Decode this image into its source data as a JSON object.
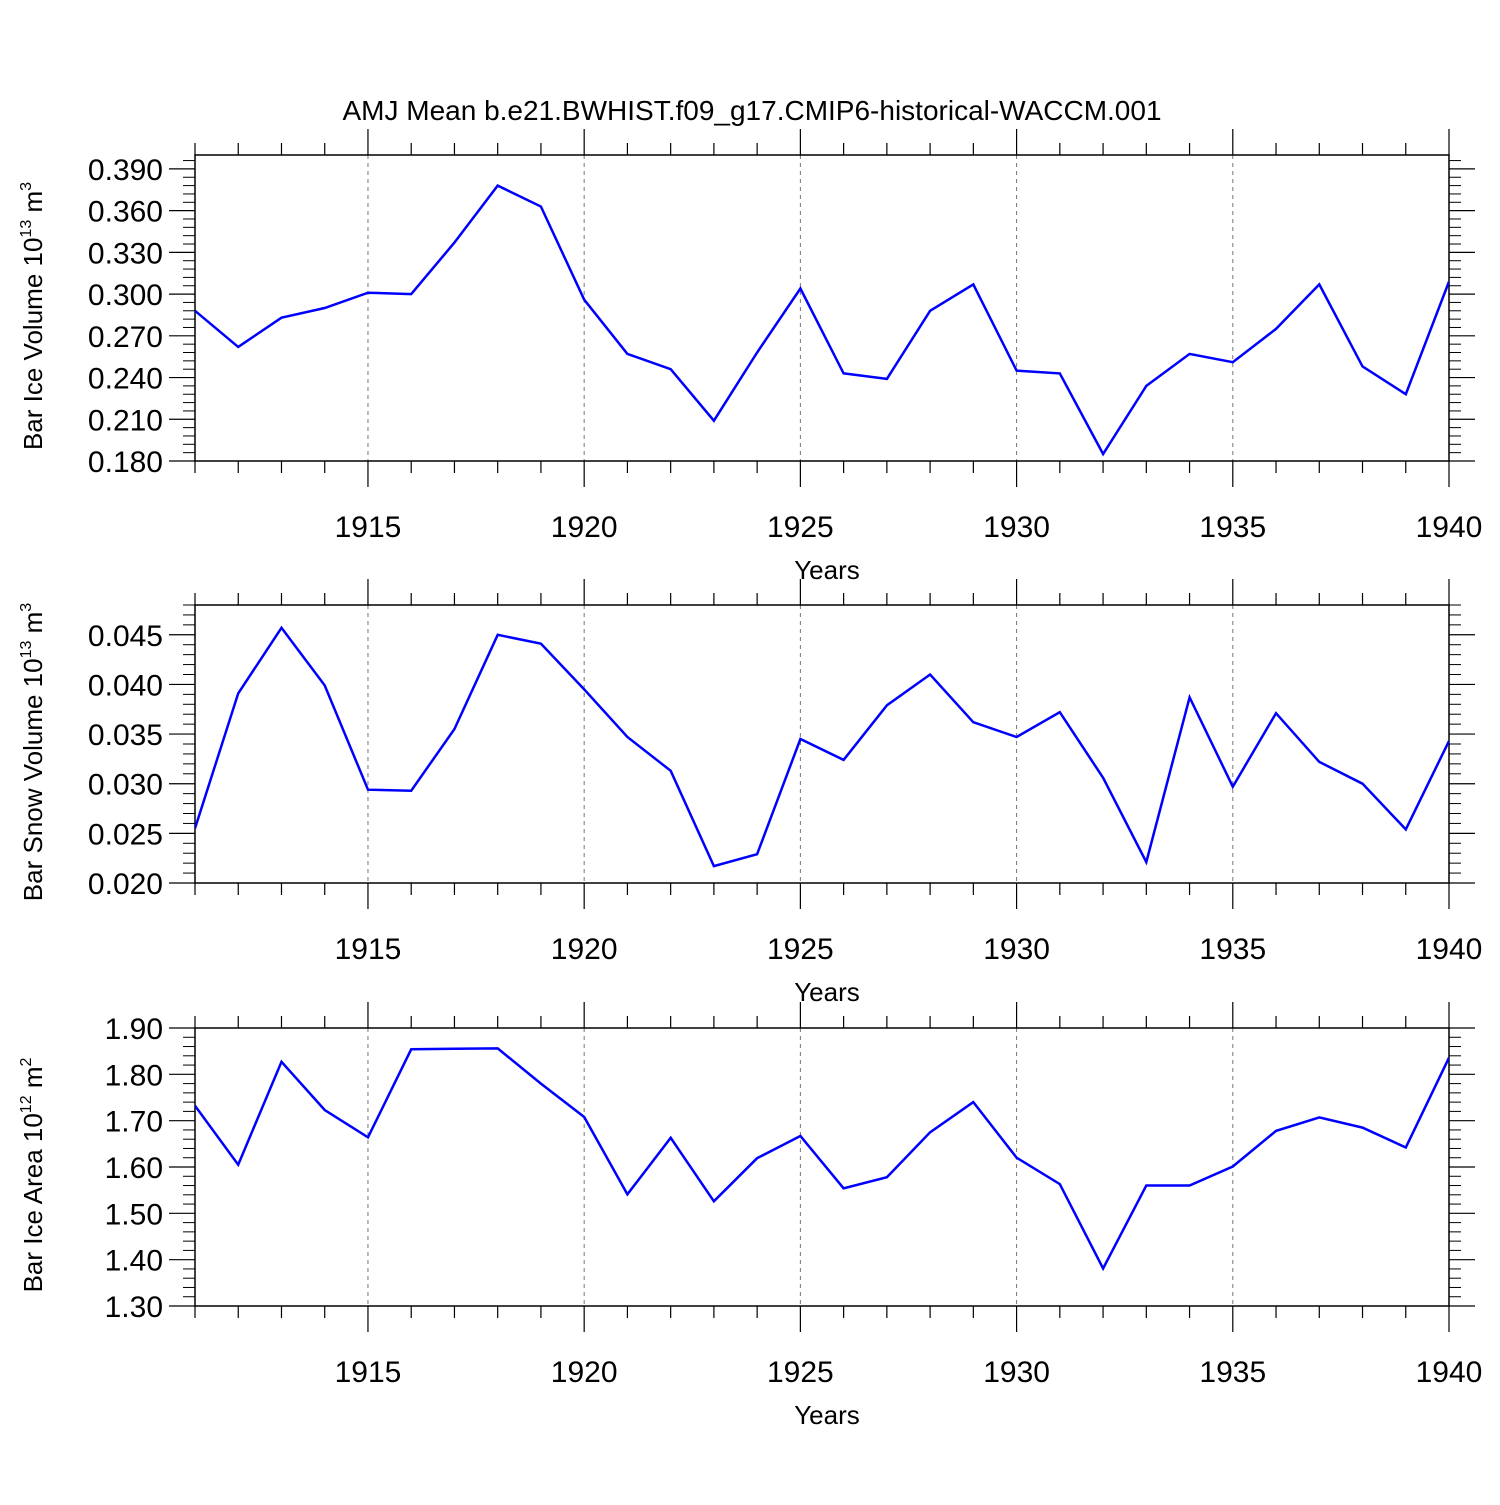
{
  "title": "AMJ Mean b.e21.BWHIST.f09_g17.CMIP6-historical-WACCM.001",
  "chart_data": [
    {
      "type": "line",
      "ylabel_main": "Bar Ice Volume 10",
      "ylabel_exp": "13",
      "ylabel_unit": " m",
      "ylabel_unit_exp": "3",
      "xlabel": "Years",
      "xlim": [
        1911,
        1940
      ],
      "ylim": [
        0.18,
        0.4
      ],
      "yticks": [
        0.18,
        0.21,
        0.24,
        0.27,
        0.3,
        0.33,
        0.36,
        0.39
      ],
      "ytick_labels": [
        "0.180",
        "0.210",
        "0.240",
        "0.270",
        "0.300",
        "0.330",
        "0.360",
        "0.390"
      ],
      "xticks": [
        1915,
        1920,
        1925,
        1930,
        1935,
        1940
      ],
      "xtick_labels": [
        "1915",
        "1920",
        "1925",
        "1930",
        "1935",
        "1940"
      ],
      "grid": "vertical dashed at major x ticks",
      "color": "#0000ff",
      "x": [
        1911,
        1912,
        1913,
        1914,
        1915,
        1916,
        1917,
        1918,
        1919,
        1920,
        1921,
        1922,
        1923,
        1924,
        1925,
        1926,
        1927,
        1928,
        1929,
        1930,
        1931,
        1932,
        1933,
        1934,
        1935,
        1936,
        1937,
        1938,
        1939,
        1940
      ],
      "y": [
        0.288,
        0.262,
        0.283,
        0.29,
        0.301,
        0.3,
        0.337,
        0.378,
        0.363,
        0.296,
        0.257,
        0.246,
        0.209,
        0.258,
        0.304,
        0.243,
        0.239,
        0.288,
        0.307,
        0.245,
        0.243,
        0.185,
        0.234,
        0.257,
        0.251,
        0.275,
        0.307,
        0.248,
        0.228,
        0.309
      ]
    },
    {
      "type": "line",
      "ylabel_main": "Bar Snow Volume 10",
      "ylabel_exp": "13",
      "ylabel_unit": " m",
      "ylabel_unit_exp": "3",
      "xlabel": "Years",
      "xlim": [
        1911,
        1940
      ],
      "ylim": [
        0.02,
        0.048
      ],
      "yticks": [
        0.02,
        0.025,
        0.03,
        0.035,
        0.04,
        0.045
      ],
      "ytick_labels": [
        "0.020",
        "0.025",
        "0.030",
        "0.035",
        "0.040",
        "0.045"
      ],
      "xticks": [
        1915,
        1920,
        1925,
        1930,
        1935,
        1940
      ],
      "xtick_labels": [
        "1915",
        "1920",
        "1925",
        "1930",
        "1935",
        "1940"
      ],
      "grid": "vertical dashed at major x ticks",
      "color": "#0000ff",
      "x": [
        1911,
        1912,
        1913,
        1914,
        1915,
        1916,
        1917,
        1918,
        1919,
        1920,
        1921,
        1922,
        1923,
        1924,
        1925,
        1926,
        1927,
        1928,
        1929,
        1930,
        1931,
        1932,
        1933,
        1934,
        1935,
        1936,
        1937,
        1938,
        1939,
        1940
      ],
      "y": [
        0.0255,
        0.0391,
        0.0457,
        0.0399,
        0.0294,
        0.0293,
        0.0355,
        0.045,
        0.0441,
        0.0395,
        0.0347,
        0.0313,
        0.0217,
        0.0229,
        0.0345,
        0.0324,
        0.0379,
        0.041,
        0.0362,
        0.0347,
        0.0372,
        0.0306,
        0.0221,
        0.0387,
        0.0297,
        0.0371,
        0.0322,
        0.03,
        0.0254,
        0.0343
      ]
    },
    {
      "type": "line",
      "ylabel_main": "Bar Ice Area 10",
      "ylabel_exp": "12",
      "ylabel_unit": " m",
      "ylabel_unit_exp": "2",
      "xlabel": "Years",
      "xlim": [
        1911,
        1940
      ],
      "ylim": [
        1.3,
        1.9
      ],
      "yticks": [
        1.3,
        1.4,
        1.5,
        1.6,
        1.7,
        1.8,
        1.9
      ],
      "ytick_labels": [
        "1.30",
        "1.40",
        "1.50",
        "1.60",
        "1.70",
        "1.80",
        "1.90"
      ],
      "xticks": [
        1915,
        1920,
        1925,
        1930,
        1935,
        1940
      ],
      "xtick_labels": [
        "1915",
        "1920",
        "1925",
        "1930",
        "1935",
        "1940"
      ],
      "grid": "vertical dashed at major x ticks",
      "color": "#0000ff",
      "x": [
        1911,
        1912,
        1913,
        1914,
        1915,
        1916,
        1917,
        1918,
        1919,
        1920,
        1921,
        1922,
        1923,
        1924,
        1925,
        1926,
        1927,
        1928,
        1929,
        1930,
        1931,
        1932,
        1933,
        1934,
        1935,
        1936,
        1937,
        1938,
        1939,
        1940
      ],
      "y": [
        1.732,
        1.605,
        1.827,
        1.723,
        1.664,
        1.854,
        1.855,
        1.856,
        1.78,
        1.708,
        1.541,
        1.663,
        1.526,
        1.619,
        1.667,
        1.554,
        1.578,
        1.675,
        1.74,
        1.62,
        1.563,
        1.381,
        1.56,
        1.56,
        1.601,
        1.678,
        1.707,
        1.685,
        1.642,
        1.836
      ]
    }
  ]
}
